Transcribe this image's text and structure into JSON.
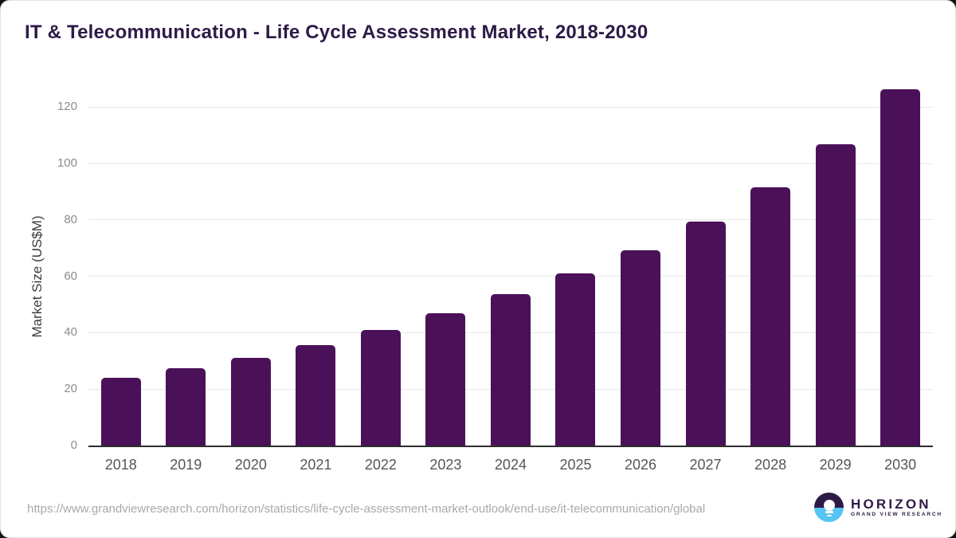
{
  "header": {
    "title": "IT & Telecommunication - Life Cycle Assessment Market, 2018-2030"
  },
  "chart_data": {
    "type": "bar",
    "title": "IT & Telecommunication - Life Cycle Assessment Market, 2018-2030",
    "categories": [
      "2018",
      "2019",
      "2020",
      "2021",
      "2022",
      "2023",
      "2024",
      "2025",
      "2026",
      "2027",
      "2028",
      "2029",
      "2030"
    ],
    "values": [
      24.1,
      27.4,
      31.2,
      35.7,
      40.9,
      46.8,
      53.6,
      61.0,
      69.3,
      79.3,
      91.5,
      106.9,
      126.4
    ],
    "xlabel": "",
    "ylabel": "Market Size (US$M)",
    "ylim": [
      0,
      130
    ],
    "yticks": [
      0,
      20,
      40,
      60,
      80,
      100,
      120
    ],
    "grid": true,
    "legend": "none",
    "bar_color": "#4a1158"
  },
  "footer": {
    "source_url": "https://www.grandviewresearch.com/horizon/statistics/life-cycle-assessment-market-outlook/end-use/it-telecommunication/global",
    "logo": {
      "brand": "HORIZON",
      "sub_brand": "GRAND VIEW RESEARCH"
    }
  },
  "colors": {
    "bar": "#4a1158",
    "title_text": "#2e1a47",
    "gridline": "#e8e8e8",
    "axis_line": "#2d2d2d",
    "tick_text": "#8d8d8d",
    "xlabel_text": "#565656",
    "url_text": "#a9a9a9",
    "logo_blue": "#56c5f2"
  }
}
